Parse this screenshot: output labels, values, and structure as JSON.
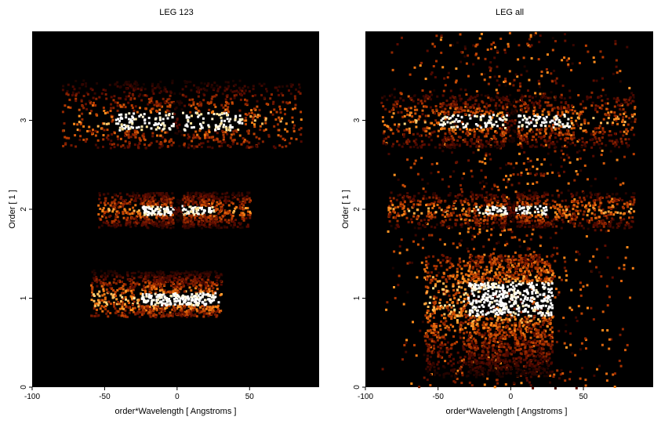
{
  "chart_data": [
    {
      "type": "heatmap",
      "title": "LEG 123",
      "xlabel": "order*Wavelength [ Angstroms ]",
      "ylabel": "Order [ 1 ]",
      "xlim": [
        -100,
        98
      ],
      "ylim": [
        0,
        4
      ],
      "x_ticks": [
        -100,
        -50,
        0,
        50
      ],
      "y_ticks": [
        0,
        1,
        2,
        3
      ],
      "colormap": [
        "#000000",
        "#5a0a00",
        "#b83a00",
        "#ff8c1a",
        "#ffe08a",
        "#ffffff"
      ],
      "background": "#000000",
      "bands": [
        {
          "order": 1,
          "y_range": [
            0.8,
            1.35
          ],
          "x_range": [
            -60,
            30
          ],
          "center_gap": 0,
          "bright_x": [
            -25,
            28
          ],
          "intensity": 0.95
        },
        {
          "order": 2,
          "y_range": [
            1.8,
            2.2
          ],
          "x_range": [
            -55,
            50
          ],
          "center_gap": 0,
          "bright_x": [
            -25,
            25
          ],
          "intensity": 0.75
        },
        {
          "order": 3,
          "y_range": [
            2.7,
            3.5
          ],
          "x_range": [
            -80,
            85
          ],
          "center_gap": 0,
          "bright_x": [
            -45,
            45
          ],
          "intensity": 0.8
        }
      ]
    },
    {
      "type": "heatmap",
      "title": "LEG all",
      "xlabel": "order*Wavelength [ Angstroms ]",
      "ylabel": "Order [ 1 ]",
      "xlim": [
        -100,
        98
      ],
      "ylim": [
        0,
        4
      ],
      "x_ticks": [
        -100,
        -50,
        0,
        50
      ],
      "y_ticks": [
        0,
        1,
        2,
        3
      ],
      "colormap": [
        "#000000",
        "#5a0a00",
        "#b83a00",
        "#ff8c1a",
        "#ffe08a",
        "#ffffff"
      ],
      "background": "#000000",
      "bands": [
        {
          "order": 1,
          "y_range": [
            0.0,
            1.5
          ],
          "x_range": [
            -60,
            28
          ],
          "center_gap": 0,
          "bright_x": [
            -30,
            28
          ],
          "intensity": 0.95
        },
        {
          "order": 2,
          "y_range": [
            1.8,
            2.2
          ],
          "x_range": [
            -85,
            85
          ],
          "center_gap": 0,
          "bright_x": [
            -25,
            25
          ],
          "intensity": 0.8
        },
        {
          "order": 3,
          "y_range": [
            2.7,
            3.3
          ],
          "x_range": [
            -90,
            85
          ],
          "center_gap": 0,
          "bright_x": [
            -50,
            40
          ],
          "intensity": 0.85
        }
      ],
      "diffuse_background": {
        "x_range": [
          -90,
          85
        ],
        "y_range": [
          0.0,
          4.0
        ],
        "intensity": 0.45
      }
    }
  ]
}
